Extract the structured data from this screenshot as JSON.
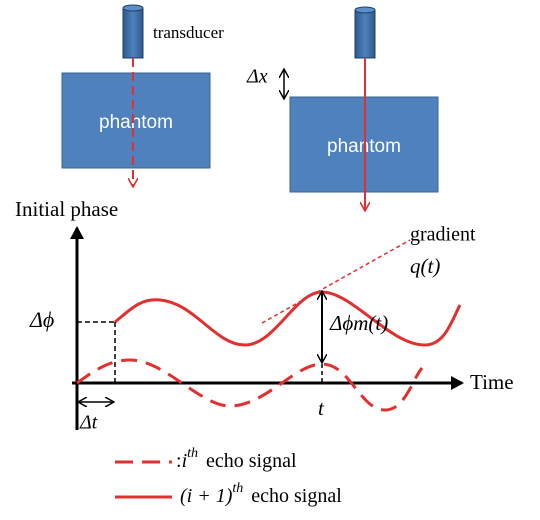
{
  "labels": {
    "transducer": "transducer",
    "phantom_left": "phantom",
    "phantom_right": "phantom",
    "delta_x": "Δx",
    "y_axis": "Initial phase",
    "x_axis": "Time",
    "gradient": "gradient",
    "gradient_symbol": "q(t)",
    "delta_phi": "Δϕ",
    "delta_phi_m": "Δϕm(t)",
    "delta_t": "Δt",
    "t": "t"
  },
  "legend": [
    {
      "prefix": ":",
      "base": "i",
      "sup": "th",
      "text": "echo signal"
    },
    {
      "base": "(i + 1)",
      "sup": "th",
      "text": "echo signal"
    }
  ]
}
